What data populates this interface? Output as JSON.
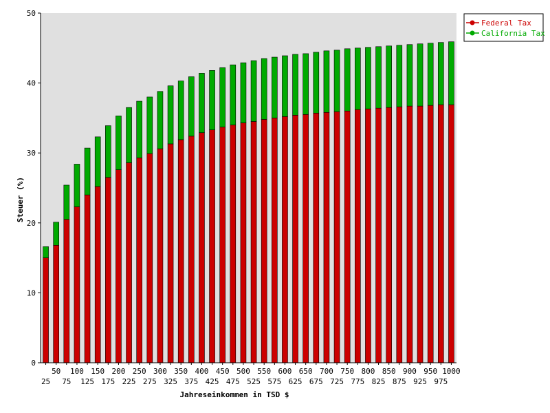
{
  "chart_data": {
    "type": "bar",
    "stacked": true,
    "title": "",
    "xlabel": "Jahreseinkommen in TSD $",
    "ylabel": "Steuer (%)",
    "ylim": [
      0,
      50
    ],
    "yticks": [
      0,
      10,
      20,
      30,
      40,
      50
    ],
    "background": "#e0e0e0",
    "legend_position": "top-right",
    "categories": [
      25,
      50,
      75,
      100,
      125,
      150,
      175,
      200,
      225,
      250,
      275,
      300,
      325,
      350,
      375,
      400,
      425,
      450,
      475,
      500,
      525,
      550,
      575,
      600,
      625,
      650,
      675,
      700,
      725,
      750,
      775,
      800,
      825,
      850,
      875,
      900,
      925,
      950,
      975,
      1000
    ],
    "series": [
      {
        "name": "Federal Tax",
        "color": "#cc0000",
        "values": [
          15.0,
          16.8,
          20.5,
          22.3,
          24.0,
          25.2,
          26.5,
          27.6,
          28.6,
          29.3,
          29.9,
          30.6,
          31.3,
          31.9,
          32.4,
          32.9,
          33.3,
          33.7,
          34.0,
          34.3,
          34.5,
          34.8,
          35.0,
          35.2,
          35.4,
          35.5,
          35.7,
          35.8,
          35.9,
          36.0,
          36.2,
          36.3,
          36.4,
          36.5,
          36.6,
          36.7,
          36.7,
          36.8,
          36.9,
          36.9
        ]
      },
      {
        "name": "California Tax",
        "color": "#00aa00",
        "values": [
          1.6,
          3.3,
          4.9,
          6.1,
          6.7,
          7.1,
          7.4,
          7.7,
          7.9,
          8.1,
          8.1,
          8.2,
          8.3,
          8.4,
          8.5,
          8.5,
          8.5,
          8.5,
          8.6,
          8.6,
          8.7,
          8.7,
          8.7,
          8.7,
          8.7,
          8.7,
          8.7,
          8.8,
          8.8,
          8.9,
          8.8,
          8.8,
          8.8,
          8.8,
          8.8,
          8.8,
          8.9,
          8.9,
          8.9,
          9.0
        ]
      }
    ]
  }
}
